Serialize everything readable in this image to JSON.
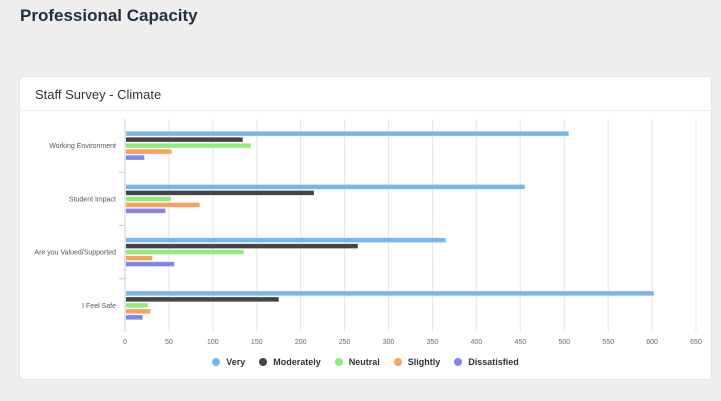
{
  "page": {
    "title": "Professional Capacity"
  },
  "card": {
    "title": "Staff Survey - Climate"
  },
  "chart_data": {
    "type": "bar",
    "orientation": "horizontal",
    "title": "Staff Survey - Climate",
    "categories": [
      "Working Environment",
      "Student Impact",
      "Are you Valued/Supported",
      "I Feel Safe"
    ],
    "series": [
      {
        "name": "Very",
        "color": "#7cb5ec",
        "values": [
          505,
          455,
          365,
          602
        ]
      },
      {
        "name": "Moderately",
        "color": "#434348",
        "values": [
          134,
          215,
          265,
          175
        ]
      },
      {
        "name": "Neutral",
        "color": "#90ed7d",
        "values": [
          143,
          52,
          135,
          26
        ]
      },
      {
        "name": "Slightly",
        "color": "#f7a35c",
        "values": [
          53,
          85,
          31,
          29
        ]
      },
      {
        "name": "Dissatisfied",
        "color": "#8085e9",
        "values": [
          22,
          46,
          56,
          20
        ]
      }
    ],
    "x_ticks": [
      0,
      50,
      100,
      150,
      200,
      250,
      300,
      350,
      400,
      450,
      500,
      550,
      600,
      650
    ],
    "xlim": [
      0,
      650
    ],
    "grid": true,
    "legend_position": "bottom"
  }
}
